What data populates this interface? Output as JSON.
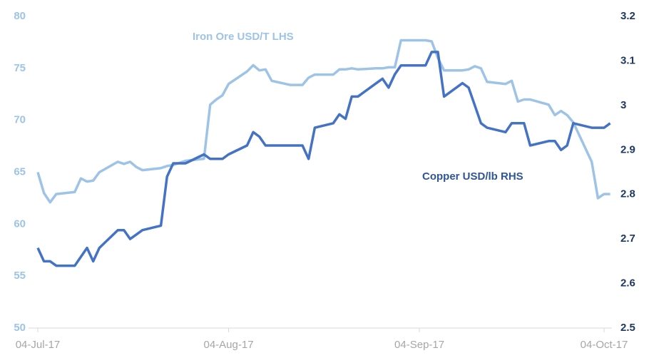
{
  "chart_data": {
    "type": "line",
    "x": [
      "2017-07-04",
      "2017-07-05",
      "2017-07-06",
      "2017-07-07",
      "2017-07-10",
      "2017-07-11",
      "2017-07-12",
      "2017-07-13",
      "2017-07-14",
      "2017-07-17",
      "2017-07-18",
      "2017-07-19",
      "2017-07-20",
      "2017-07-21",
      "2017-07-24",
      "2017-07-25",
      "2017-07-26",
      "2017-07-27",
      "2017-07-28",
      "2017-07-31",
      "2017-08-01",
      "2017-08-02",
      "2017-08-03",
      "2017-08-04",
      "2017-08-07",
      "2017-08-08",
      "2017-08-09",
      "2017-08-10",
      "2017-08-11",
      "2017-08-14",
      "2017-08-15",
      "2017-08-16",
      "2017-08-17",
      "2017-08-18",
      "2017-08-21",
      "2017-08-22",
      "2017-08-23",
      "2017-08-24",
      "2017-08-25",
      "2017-08-28",
      "2017-08-29",
      "2017-08-30",
      "2017-08-31",
      "2017-09-01",
      "2017-09-04",
      "2017-09-05",
      "2017-09-06",
      "2017-09-07",
      "2017-09-08",
      "2017-09-11",
      "2017-09-12",
      "2017-09-13",
      "2017-09-14",
      "2017-09-15",
      "2017-09-18",
      "2017-09-19",
      "2017-09-20",
      "2017-09-21",
      "2017-09-22",
      "2017-09-25",
      "2017-09-26",
      "2017-09-27",
      "2017-09-28",
      "2017-09-29",
      "2017-10-02",
      "2017-10-03",
      "2017-10-04",
      "2017-10-05"
    ],
    "series": [
      {
        "name": "Iron Ore USD/T LHS",
        "color": "#9dc3e6",
        "axis": "y",
        "values": [
          65,
          63,
          62.1,
          62.9,
          63.1,
          64.4,
          64.1,
          64.2,
          65,
          66,
          65.8,
          66,
          65.5,
          65.2,
          65.4,
          65.6,
          65.7,
          65.9,
          66.1,
          66.3,
          71.5,
          72,
          72.4,
          73.5,
          74.7,
          75.3,
          74.8,
          74.9,
          73.8,
          73.4,
          73.4,
          73.4,
          74.1,
          74.4,
          74.4,
          74.9,
          74.9,
          75,
          74.9,
          75,
          75,
          75.1,
          75.1,
          77.7,
          77.7,
          77.7,
          77.6,
          76,
          74.8,
          74.8,
          74.9,
          75.2,
          75,
          73.7,
          73.5,
          73.8,
          71.8,
          72,
          72,
          71.5,
          70.5,
          70.9,
          70.5,
          69.8,
          66,
          62.5,
          62.9,
          62.9
        ]
      },
      {
        "name": "Copper USD/lb RHS",
        "color": "#4472c4",
        "axis": "y2",
        "values": [
          2.68,
          2.65,
          2.65,
          2.64,
          2.64,
          2.66,
          2.68,
          2.65,
          2.68,
          2.72,
          2.72,
          2.7,
          2.71,
          2.72,
          2.73,
          2.84,
          2.87,
          2.87,
          2.87,
          2.89,
          2.88,
          2.88,
          2.88,
          2.89,
          2.91,
          2.94,
          2.93,
          2.91,
          2.91,
          2.91,
          2.91,
          2.91,
          2.88,
          2.95,
          2.96,
          2.98,
          2.97,
          3.02,
          3.02,
          3.05,
          3.06,
          3.04,
          3.07,
          3.09,
          3.09,
          3.09,
          3.12,
          3.12,
          3.02,
          3.05,
          3.04,
          3.0,
          2.96,
          2.95,
          2.94,
          2.96,
          2.96,
          2.96,
          2.91,
          2.92,
          2.92,
          2.9,
          2.91,
          2.96,
          2.95,
          2.95,
          2.95,
          2.96
        ]
      }
    ],
    "ylim": [
      50,
      80
    ],
    "yticks": [
      50,
      55,
      60,
      65,
      70,
      75,
      80
    ],
    "y2lim": [
      2.5,
      3.2
    ],
    "y2ticks": [
      2.5,
      2.6,
      2.7,
      2.8,
      2.9,
      3,
      3.1,
      3.2
    ],
    "xlim": [
      "2017-07-04",
      "2017-10-04"
    ],
    "xticks": [
      {
        "value": "2017-07-04",
        "label": "04-Jul-17"
      },
      {
        "value": "2017-08-04",
        "label": "04-Aug-17"
      },
      {
        "value": "2017-09-04",
        "label": "04-Sep-17"
      },
      {
        "value": "2017-10-04",
        "label": "04-Oct-17"
      }
    ],
    "grid": false
  }
}
